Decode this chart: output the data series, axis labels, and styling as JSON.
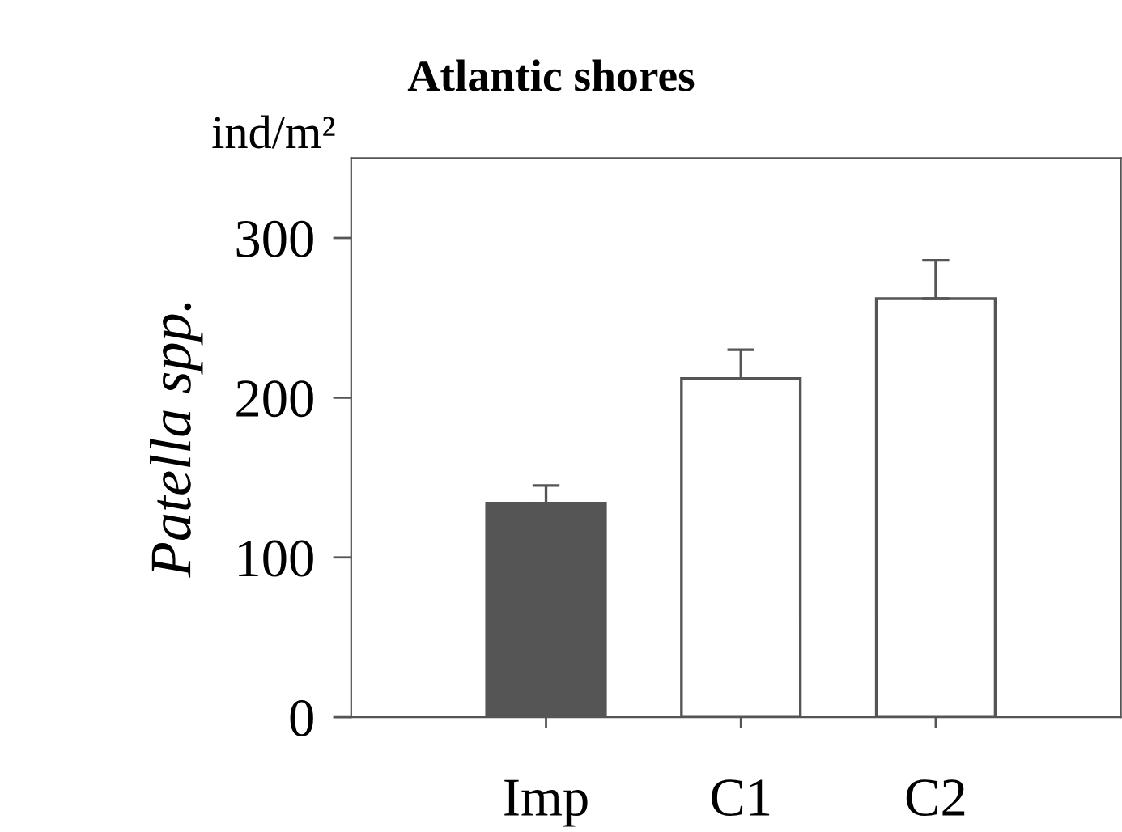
{
  "chart_data": {
    "type": "bar",
    "title": "Atlantic shores",
    "ylabel": "Patella spp.",
    "annotations": [
      "ind/m²"
    ],
    "categories": [
      "Imp",
      "C1",
      "C2"
    ],
    "values": [
      134,
      212,
      262
    ],
    "errors": [
      11,
      18,
      24
    ],
    "colors": [
      "#555555",
      "#ffffff",
      "#ffffff"
    ],
    "ylim": [
      0,
      350
    ],
    "yticks": [
      0,
      100,
      200,
      300
    ],
    "grid": false,
    "legend": false
  }
}
